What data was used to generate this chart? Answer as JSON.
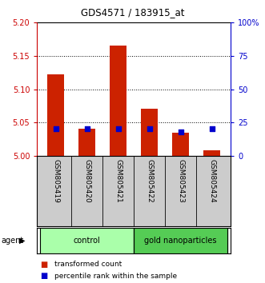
{
  "title": "GDS4571 / 183915_at",
  "samples": [
    "GSM805419",
    "GSM805420",
    "GSM805421",
    "GSM805422",
    "GSM805423",
    "GSM805424"
  ],
  "red_values": [
    5.122,
    5.04,
    5.165,
    5.07,
    5.035,
    5.008
  ],
  "blue_values": [
    20,
    20,
    20,
    20,
    18,
    20
  ],
  "ylim_left": [
    5.0,
    5.2
  ],
  "ylim_right": [
    0,
    100
  ],
  "yticks_left": [
    5.0,
    5.05,
    5.1,
    5.15,
    5.2
  ],
  "yticks_right": [
    0,
    25,
    50,
    75,
    100
  ],
  "ytick_labels_right": [
    "0",
    "25",
    "50",
    "75",
    "100%"
  ],
  "groups": [
    {
      "label": "control",
      "indices": [
        0,
        1,
        2
      ],
      "color": "#aaffaa"
    },
    {
      "label": "gold nanoparticles",
      "indices": [
        3,
        4,
        5
      ],
      "color": "#55cc55"
    }
  ],
  "agent_label": "agent",
  "legend_red": "transformed count",
  "legend_blue": "percentile rank within the sample",
  "left_axis_color": "#cc0000",
  "right_axis_color": "#0000cc",
  "bar_color": "#cc2200",
  "blue_color": "#0000cc",
  "background_plot": "#ffffff",
  "background_samples": "#cccccc",
  "bar_width": 0.55
}
